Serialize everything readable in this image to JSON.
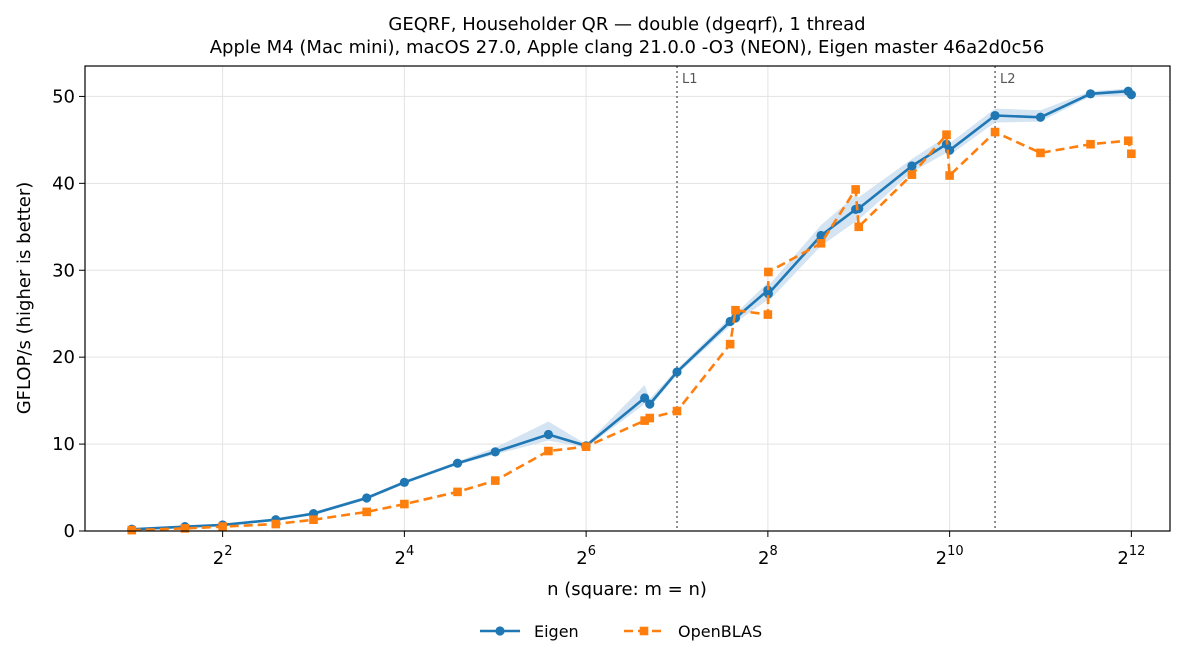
{
  "chart_data": {
    "type": "line",
    "title": "GEQRF, Householder QR — double (dgeqrf), 1 thread",
    "subtitle": "Apple M4 (Mac mini), macOS 27.0, Apple clang 21.0.0 -O3 (NEON), Eigen master 46a2d0c56",
    "xlabel": "n (square: m = n)",
    "ylabel": "GFLOP/s (higher is better)",
    "x_scale": "log2",
    "x_ticks": [
      {
        "value": 4,
        "base": "2",
        "exp": "2"
      },
      {
        "value": 16,
        "base": "2",
        "exp": "4"
      },
      {
        "value": 64,
        "base": "2",
        "exp": "6"
      },
      {
        "value": 256,
        "base": "2",
        "exp": "8"
      },
      {
        "value": 1024,
        "base": "2",
        "exp": "10"
      },
      {
        "value": 4096,
        "base": "2",
        "exp": "12"
      }
    ],
    "xlim": [
      1.4,
      5500
    ],
    "ylim": [
      0,
      53.5
    ],
    "y_ticks": [
      0,
      10,
      20,
      30,
      40,
      50
    ],
    "grid": true,
    "legend_position": "bottom-center",
    "cache_lines": [
      {
        "label": "L1",
        "x": 128
      },
      {
        "label": "L2",
        "x": 1448
      }
    ],
    "series": [
      {
        "name": "Eigen",
        "color": "#1f77b4",
        "marker": "circle",
        "linestyle": "solid",
        "band_color": "#c6dbef",
        "x": [
          2,
          3,
          4,
          6,
          8,
          12,
          16,
          24,
          32,
          48,
          64,
          100,
          104,
          128,
          192,
          200,
          256,
          257,
          384,
          500,
          512,
          768,
          1000,
          1024,
          1448,
          2048,
          3000,
          4000,
          4096
        ],
        "values": [
          0.2,
          0.5,
          0.7,
          1.3,
          2.0,
          3.8,
          5.6,
          7.8,
          9.1,
          11.1,
          9.8,
          15.3,
          14.6,
          18.3,
          24.1,
          24.5,
          27.7,
          27.3,
          34.0,
          37.0,
          37.1,
          42.0,
          44.5,
          43.8,
          47.8,
          47.6,
          50.3,
          50.6,
          50.2
        ],
        "band_low": [
          0.15,
          0.4,
          0.6,
          1.2,
          1.8,
          3.6,
          5.4,
          7.6,
          8.8,
          10.4,
          9.6,
          14.6,
          14.2,
          18.0,
          23.6,
          24.0,
          26.6,
          26.4,
          32.8,
          35.6,
          35.8,
          41.3,
          43.5,
          43.2,
          47.0,
          47.1,
          50.0,
          50.1,
          49.8
        ],
        "band_high": [
          0.25,
          0.6,
          0.8,
          1.4,
          2.2,
          4.0,
          5.8,
          8.0,
          9.6,
          12.6,
          10.0,
          16.8,
          15.2,
          18.6,
          24.6,
          25.0,
          28.6,
          28.2,
          35.2,
          38.6,
          38.4,
          42.8,
          45.4,
          44.6,
          48.6,
          48.4,
          50.6,
          50.9,
          50.7
        ]
      },
      {
        "name": "OpenBLAS",
        "color": "#ff7f0e",
        "marker": "square",
        "linestyle": "dashed",
        "x": [
          2,
          3,
          4,
          6,
          8,
          12,
          16,
          24,
          32,
          48,
          64,
          100,
          104,
          128,
          192,
          200,
          256,
          257,
          384,
          500,
          512,
          768,
          1000,
          1024,
          1448,
          2048,
          3000,
          4000,
          4096
        ],
        "values": [
          0.1,
          0.3,
          0.5,
          0.8,
          1.3,
          2.2,
          3.1,
          4.5,
          5.8,
          9.2,
          9.7,
          12.7,
          13.0,
          13.8,
          21.5,
          25.4,
          24.9,
          29.8,
          33.1,
          39.3,
          35.0,
          41.0,
          45.6,
          40.9,
          45.9,
          43.5,
          44.5,
          44.9,
          43.4
        ]
      }
    ]
  }
}
